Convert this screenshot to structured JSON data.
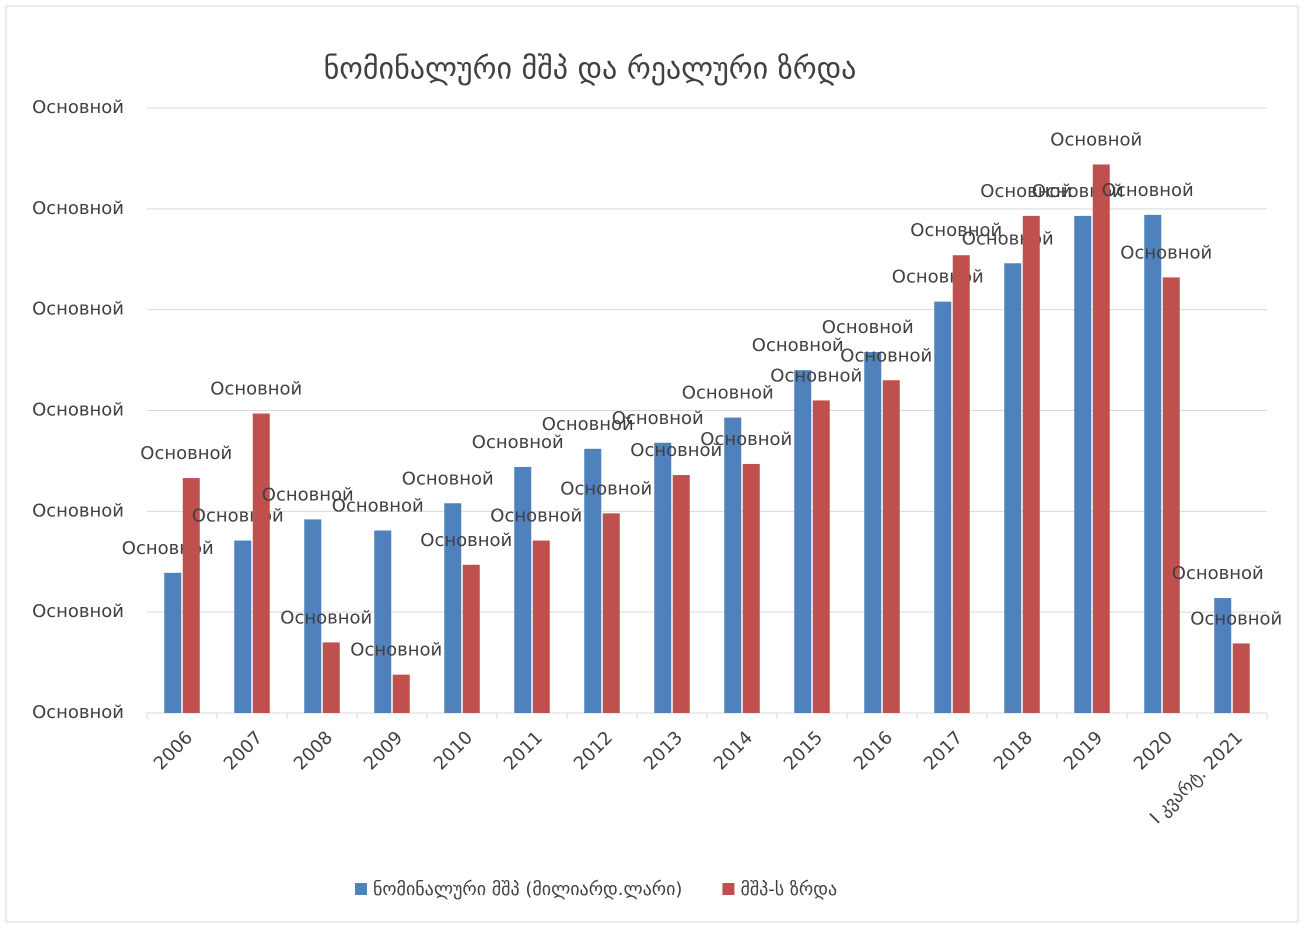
{
  "chart_data": {
    "type": "bar",
    "title": "ნომინალური მშპ და რეალური ზრდა",
    "categories": [
      "2006",
      "2007",
      "2008",
      "2009",
      "2010",
      "2011",
      "2012",
      "2013",
      "2014",
      "2015",
      "2016",
      "2017",
      "2018",
      "2019",
      "2020",
      "I კვარტ. 2021"
    ],
    "series": [
      {
        "name": "ნომინალური მშპ (მილიარდ.ლარი)",
        "color": "#4f81bd",
        "values": [
          1.39,
          1.71,
          1.92,
          1.81,
          2.08,
          2.44,
          2.62,
          2.68,
          2.93,
          3.4,
          3.58,
          4.08,
          4.46,
          4.93,
          4.94,
          1.14
        ],
        "value_labels": [
          "Основной",
          "Основной",
          "Основной",
          "Основной",
          "Основной",
          "Основной",
          "Основной",
          "Основной",
          "Основной",
          "Основной",
          "Основной",
          "Основной",
          "Основной",
          "Основной",
          "Основной",
          "Основной"
        ]
      },
      {
        "name": "მშპ-ს ზრდა",
        "color": "#c0504d",
        "values": [
          2.33,
          2.97,
          0.7,
          0.38,
          1.47,
          1.71,
          1.98,
          2.36,
          2.47,
          3.1,
          3.3,
          4.54,
          4.93,
          5.44,
          4.32,
          0.69
        ],
        "value_labels": [
          "Основной",
          "Основной",
          "Основной",
          "Основной",
          "Основной",
          "Основной",
          "Основной",
          "Основной",
          "Основной",
          "Основной",
          "Основной",
          "Основной",
          "Основной",
          "Основной",
          "Основной",
          "Основной"
        ]
      }
    ],
    "ylim": [
      0,
      6
    ],
    "yticks": [
      {
        "value": 0,
        "label": "Основной"
      },
      {
        "value": 1,
        "label": "Основной"
      },
      {
        "value": 2,
        "label": "Основной"
      },
      {
        "value": 3,
        "label": "Основной"
      },
      {
        "value": 4,
        "label": "Основной"
      },
      {
        "value": 5,
        "label": "Основной"
      },
      {
        "value": 6,
        "label": "Основной"
      }
    ],
    "grid": true,
    "legend": "bottom"
  }
}
